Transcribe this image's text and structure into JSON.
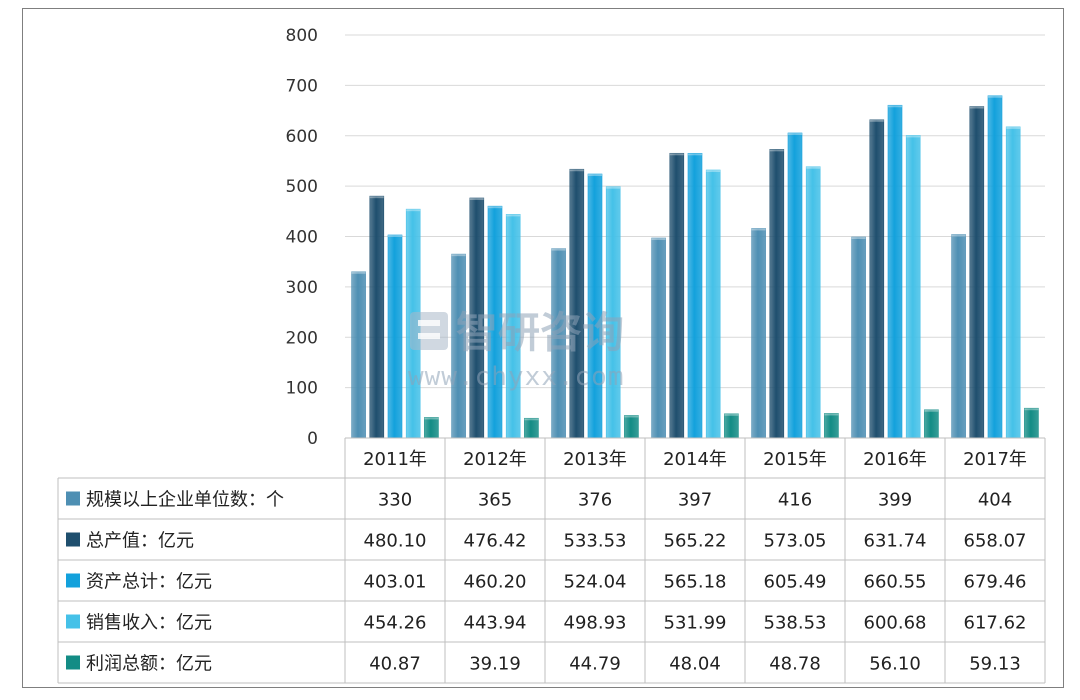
{
  "colors": {
    "series": [
      "#4e8fb3",
      "#1f4f6e",
      "#13a1dc",
      "#45c1e8",
      "#138c85"
    ],
    "grid": "#d9d9d9",
    "table_border": "#bfbfbf"
  },
  "watermark": {
    "brand": "智研咨询",
    "url": "www.chyxx.com"
  },
  "chart_data": {
    "type": "bar",
    "categories": [
      "2011年",
      "2012年",
      "2013年",
      "2014年",
      "2015年",
      "2016年",
      "2017年"
    ],
    "series": [
      {
        "name": "规模以上企业单位数：个",
        "values": [
          "330",
          "365",
          "376",
          "397",
          "416",
          "399",
          "404"
        ]
      },
      {
        "name": "总产值：亿元",
        "values": [
          "480.10",
          "476.42",
          "533.53",
          "565.22",
          "573.05",
          "631.74",
          "658.07"
        ]
      },
      {
        "name": "资产总计：亿元",
        "values": [
          "403.01",
          "460.20",
          "524.04",
          "565.18",
          "605.49",
          "660.55",
          "679.46"
        ]
      },
      {
        "name": "销售收入：亿元",
        "values": [
          "454.26",
          "443.94",
          "498.93",
          "531.99",
          "538.53",
          "600.68",
          "617.62"
        ]
      },
      {
        "name": "利润总额：亿元",
        "values": [
          "40.87",
          "39.19",
          "44.79",
          "48.04",
          "48.78",
          "56.10",
          "59.13"
        ]
      }
    ],
    "ylim": [
      0,
      800
    ],
    "yticks": [
      "0",
      "100",
      "200",
      "300",
      "400",
      "500",
      "600",
      "700",
      "800"
    ],
    "grid": true,
    "legend": "data table below chart"
  }
}
